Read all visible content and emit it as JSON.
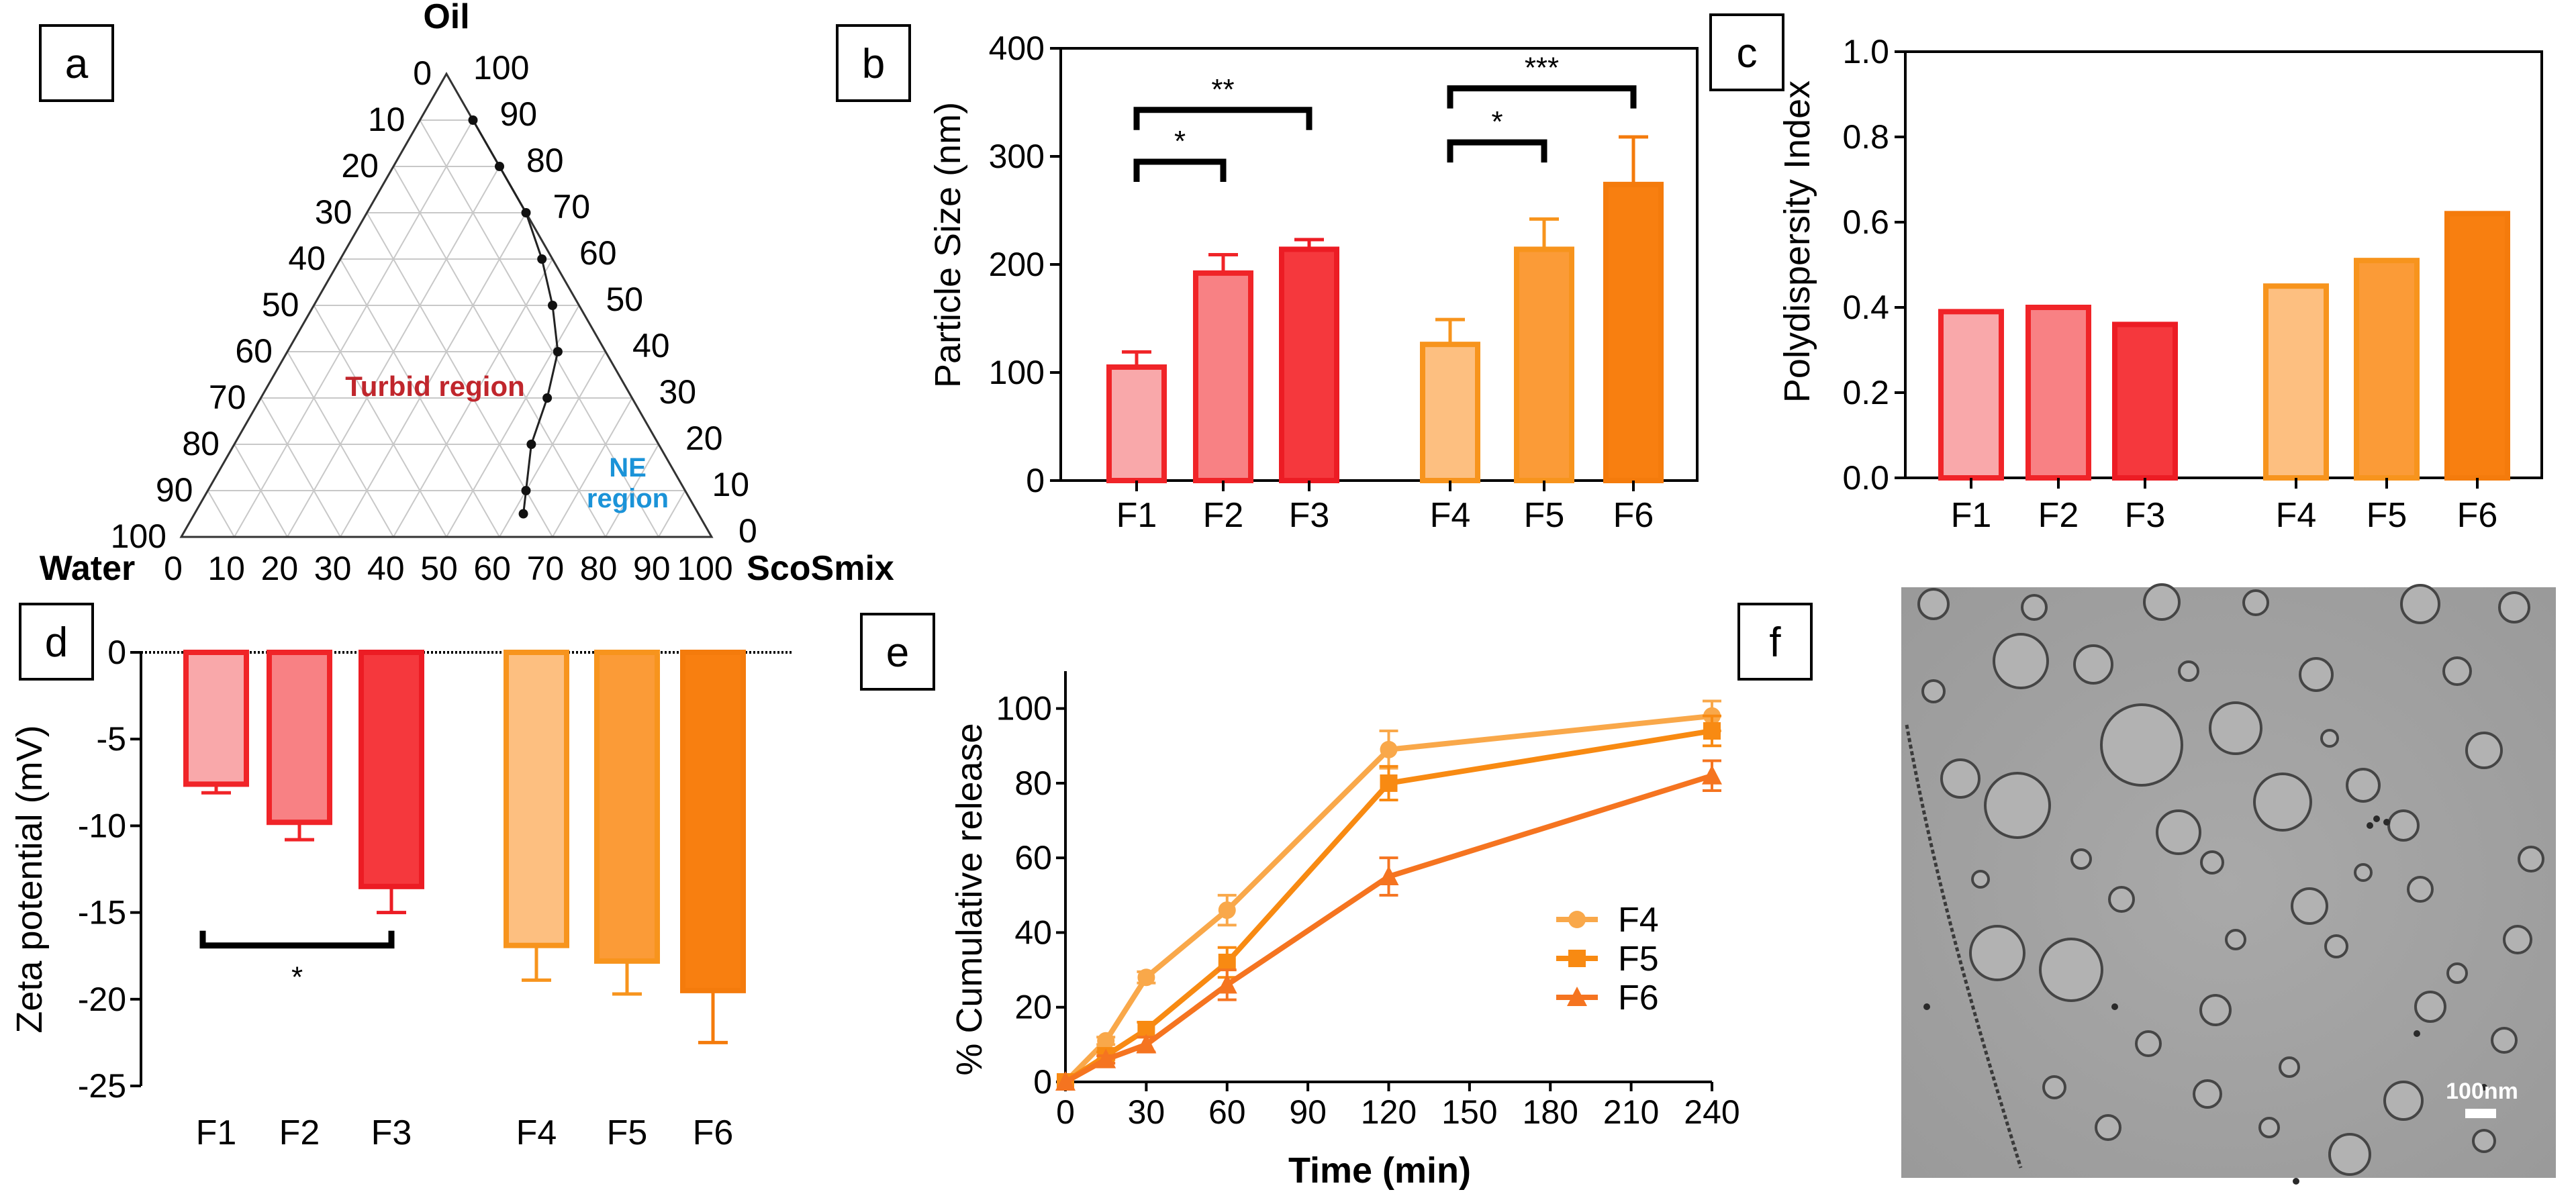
{
  "colors": {
    "f1_fill": "#f9a8aa",
    "f1_edge": "#f02428",
    "f2_fill": "#f88184",
    "f2_edge": "#f02428",
    "f3_fill": "#f5383d",
    "f3_edge": "#ec1c24",
    "f4_fill": "#fdbf80",
    "f4_edge": "#f7941d",
    "f5_fill": "#fb9b37",
    "f5_edge": "#f7941d",
    "f6_fill": "#f87f10",
    "f6_edge": "#f47b0c",
    "turbid_text": "#c0262c",
    "ne_text": "#1b93d8",
    "line_f4": "#f9a84a",
    "line_f5": "#f88a12",
    "line_f6": "#f57420"
  },
  "chart_data": [
    {
      "panel": "a",
      "type": "ternary",
      "corner_labels": {
        "top": "Oil",
        "left": "Water",
        "right": "ScoSmix"
      },
      "bottom_ticks": [
        "0",
        "10",
        "20",
        "30",
        "40",
        "50",
        "60",
        "70",
        "80",
        "90",
        "100"
      ],
      "left_ticks": [
        "0",
        "10",
        "20",
        "30",
        "40",
        "50",
        "60",
        "70",
        "80",
        "90",
        "100"
      ],
      "right_ticks": [
        "100",
        "90",
        "80",
        "70",
        "60",
        "50",
        "40",
        "30",
        "20",
        "10",
        "0"
      ],
      "annotations": [
        "Turbid region",
        "NE region"
      ],
      "boundary_points": [
        {
          "oil": 90,
          "scosmix": 10
        },
        {
          "oil": 80,
          "scosmix": 20
        },
        {
          "oil": 70,
          "scosmix": 30
        },
        {
          "oil": 60,
          "scosmix": 38
        },
        {
          "oil": 50,
          "scosmix": 45
        },
        {
          "oil": 40,
          "scosmix": 51
        },
        {
          "oil": 30,
          "scosmix": 54
        },
        {
          "oil": 20,
          "scosmix": 56
        },
        {
          "oil": 10,
          "scosmix": 60
        },
        {
          "oil": 5,
          "scosmix": 62
        }
      ]
    },
    {
      "panel": "b",
      "type": "bar",
      "ylabel": "Particle Size (nm)",
      "ylim": [
        0,
        400
      ],
      "yticks": [
        "0",
        "100",
        "200",
        "300",
        "400"
      ],
      "categories": [
        "F1",
        "F2",
        "F3",
        "F4",
        "F5",
        "F6"
      ],
      "values": [
        105,
        192,
        214,
        126,
        214,
        274
      ],
      "errors": [
        14,
        17,
        9,
        23,
        28,
        44
      ],
      "significance": [
        {
          "from": "F1",
          "to": "F2",
          "label": "*",
          "y": 295
        },
        {
          "from": "F1",
          "to": "F3",
          "label": "**",
          "y": 343
        },
        {
          "from": "F4",
          "to": "F5",
          "label": "*",
          "y": 313
        },
        {
          "from": "F4",
          "to": "F6",
          "label": "***",
          "y": 363
        }
      ]
    },
    {
      "panel": "c",
      "type": "bar",
      "ylabel": "Polydispersity Index",
      "ylim": [
        0,
        1.0
      ],
      "yticks": [
        "0.0",
        "0.2",
        "0.4",
        "0.6",
        "0.8",
        "1.0"
      ],
      "categories": [
        "F1",
        "F2",
        "F3",
        "F4",
        "F5",
        "F6"
      ],
      "values": [
        0.39,
        0.4,
        0.36,
        0.45,
        0.51,
        0.62
      ]
    },
    {
      "panel": "d",
      "type": "bar",
      "ylabel": "Zeta potential (mV)",
      "ylim": [
        -25,
        0
      ],
      "yticks": [
        "0",
        "-5",
        "-10",
        "-15",
        "-20",
        "-25"
      ],
      "categories": [
        "F1",
        "F2",
        "F3",
        "F4",
        "F5",
        "F6"
      ],
      "values": [
        -7.6,
        -9.8,
        -13.5,
        -16.9,
        -17.8,
        -19.5
      ],
      "errors": [
        0.5,
        1.0,
        1.5,
        2.0,
        1.9,
        3.0
      ],
      "significance": [
        {
          "from": "F1",
          "to": "F3",
          "label": "*",
          "y": -16.9
        }
      ]
    },
    {
      "panel": "e",
      "type": "line",
      "xlabel": "Time (min)",
      "ylabel": "% Cumulative release",
      "xlim": [
        0,
        240
      ],
      "ylim": [
        0,
        110
      ],
      "xticks": [
        "0",
        "30",
        "60",
        "90",
        "120",
        "150",
        "180",
        "210",
        "240"
      ],
      "yticks": [
        "0",
        "20",
        "40",
        "60",
        "80",
        "100"
      ],
      "x": [
        0,
        15,
        30,
        60,
        120,
        240
      ],
      "series": [
        {
          "name": "F4",
          "marker": "circle",
          "values": [
            0,
            11,
            28,
            46,
            89,
            98
          ],
          "errors": [
            0,
            1,
            1.5,
            4,
            5,
            4
          ]
        },
        {
          "name": "F5",
          "marker": "square",
          "values": [
            0,
            7,
            14,
            32,
            80,
            94
          ],
          "errors": [
            0,
            1,
            2,
            4,
            4.5,
            4
          ]
        },
        {
          "name": "F6",
          "marker": "triangle",
          "values": [
            0,
            6,
            10,
            26,
            55,
            82
          ],
          "errors": [
            0,
            1,
            2,
            4,
            5,
            4
          ]
        }
      ]
    },
    {
      "panel": "f",
      "type": "micrograph",
      "scale_bar": "100nm"
    }
  ],
  "panel_labels": [
    "a",
    "b",
    "c",
    "d",
    "e",
    "f"
  ]
}
